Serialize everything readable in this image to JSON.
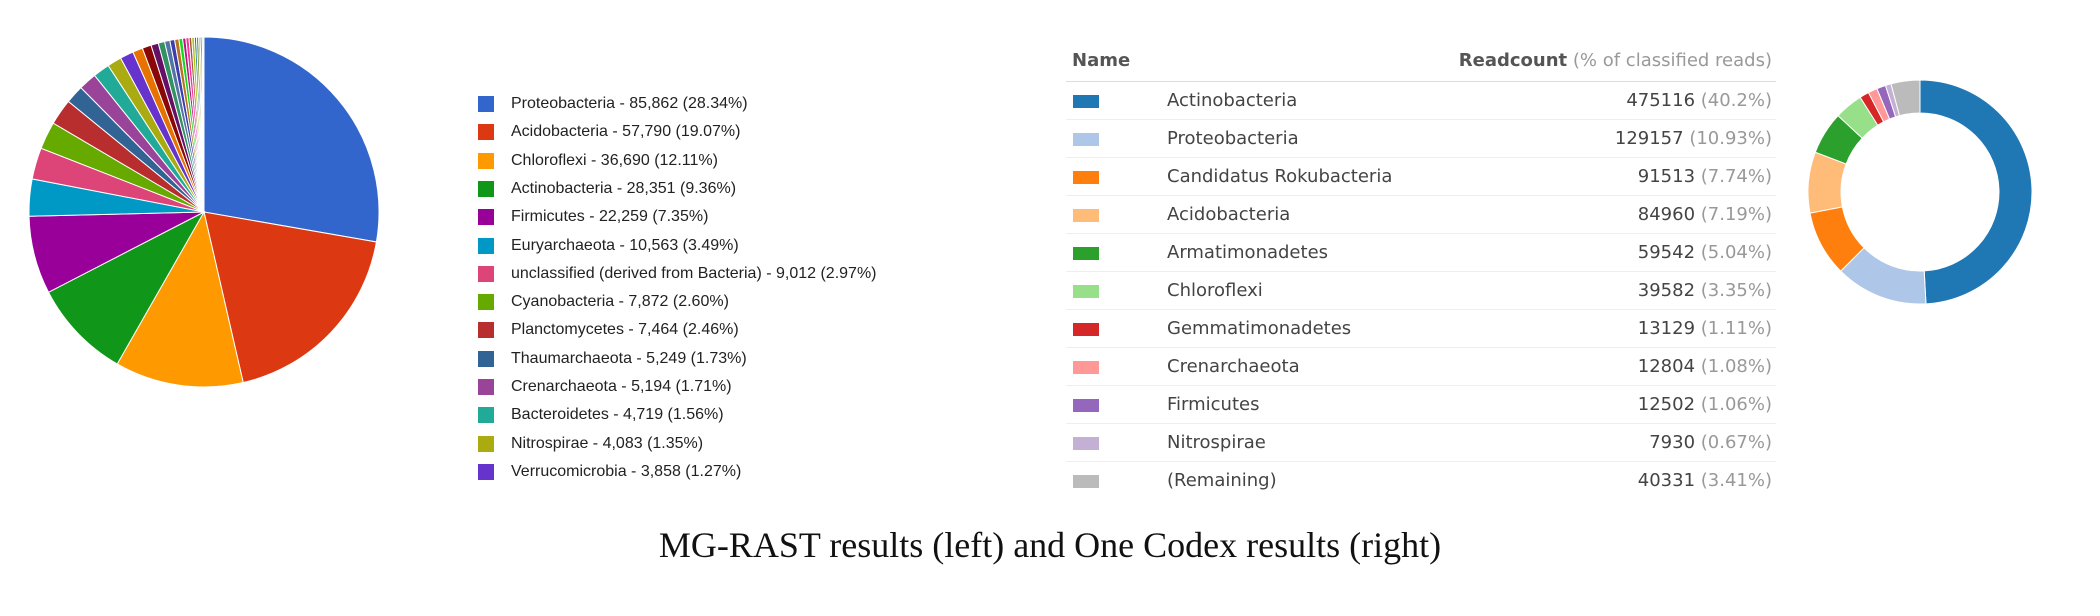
{
  "caption": "MG-RAST results (left) and One Codex results (right)",
  "chart_data": [
    {
      "type": "pie",
      "legend_position": "right",
      "start_angle_deg": 0,
      "labels": [
        "Proteobacteria - 85,862 (28.34%)",
        "Acidobacteria - 57,790 (19.07%)",
        "Chloroflexi - 36,690 (12.11%)",
        "Actinobacteria - 28,351 (9.36%)",
        "Firmicutes - 22,259 (7.35%)",
        "Euryarchaeota - 10,563 (3.49%)",
        "unclassified (derived from Bacteria) - 9,012 (2.97%)",
        "Cyanobacteria - 7,872 (2.60%)",
        "Planctomycetes - 7,464 (2.46%)",
        "Thaumarchaeota - 5,249 (1.73%)",
        "Crenarchaeota - 5,194 (1.71%)",
        "Bacteroidetes - 4,719 (1.56%)",
        "Nitrospirae - 4,083 (1.35%)",
        "Verrucomicrobia - 3,858 (1.27%)"
      ],
      "values": [
        85862,
        57790,
        36690,
        28351,
        22259,
        10563,
        9012,
        7872,
        7464,
        5249,
        5194,
        4719,
        4083,
        3858
      ],
      "percentages": [
        28.34,
        19.07,
        12.11,
        9.36,
        7.35,
        3.49,
        2.97,
        2.6,
        2.46,
        1.73,
        1.71,
        1.56,
        1.35,
        1.27
      ],
      "colors": [
        "#3366cc",
        "#dc3912",
        "#ff9900",
        "#109618",
        "#990099",
        "#0099c6",
        "#dd4477",
        "#66aa00",
        "#b82e2e",
        "#316395",
        "#994499",
        "#22aa99",
        "#aaaa11",
        "#6633cc"
      ],
      "small_slices": {
        "values": [
          0.95,
          0.85,
          0.7,
          0.6,
          0.5,
          0.45,
          0.4,
          0.35,
          0.3,
          0.3,
          0.25,
          0.25,
          0.2,
          0.2,
          0.15,
          0.15,
          0.1,
          0.1
        ],
        "colors": [
          "#e67300",
          "#8b0707",
          "#651067",
          "#329262",
          "#5574a6",
          "#3b3eac",
          "#b77322",
          "#16d620",
          "#b91383",
          "#f4359e",
          "#9c5935",
          "#a9c413",
          "#2a778d",
          "#668d1c",
          "#bea413",
          "#0c5922",
          "#743411",
          "#dc3912"
        ]
      }
    },
    {
      "type": "donut",
      "headers": {
        "name": "Name",
        "readcount": "Readcount",
        "readcount_note": "(% of classified reads)"
      },
      "rows": [
        {
          "name": "Actinobacteria",
          "value": "475116",
          "pct": "(40.2%)",
          "color": "#1f77b4"
        },
        {
          "name": "Proteobacteria",
          "value": "129157",
          "pct": "(10.93%)",
          "color": "#aec7e8"
        },
        {
          "name": "Candidatus Rokubacteria",
          "value": "91513",
          "pct": "(7.74%)",
          "color": "#ff7f0e"
        },
        {
          "name": "Acidobacteria",
          "value": "84960",
          "pct": "(7.19%)",
          "color": "#ffbb78"
        },
        {
          "name": "Armatimonadetes",
          "value": "59542",
          "pct": "(5.04%)",
          "color": "#2ca02c"
        },
        {
          "name": "Chloroflexi",
          "value": "39582",
          "pct": "(3.35%)",
          "color": "#98df8a"
        },
        {
          "name": "Gemmatimonadetes",
          "value": "13129",
          "pct": "(1.11%)",
          "color": "#d62728"
        },
        {
          "name": "Crenarchaeota",
          "value": "12804",
          "pct": "(1.08%)",
          "color": "#ff9896"
        },
        {
          "name": "Firmicutes",
          "value": "12502",
          "pct": "(1.06%)",
          "color": "#9467bd"
        },
        {
          "name": "Nitrospirae",
          "value": "7930",
          "pct": "(0.67%)",
          "color": "#c5b0d5"
        },
        {
          "name": "(Remaining)",
          "value": "40331",
          "pct": "(3.41%)",
          "color": "#bbbbbb"
        }
      ]
    }
  ]
}
